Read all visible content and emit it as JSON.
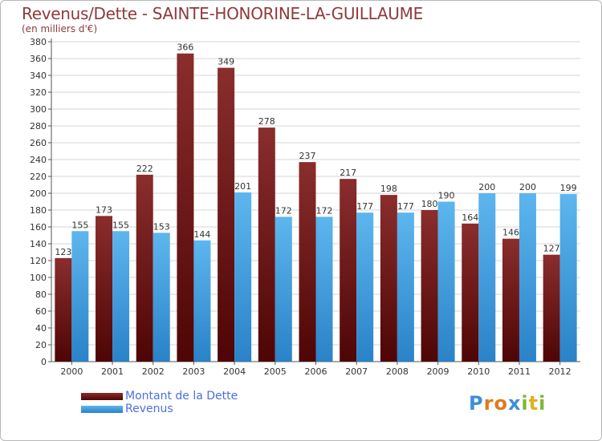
{
  "header": {
    "title": "Revenus/Dette - SAINTE-HONORINE-LA-GUILLAUME",
    "subtitle": "(en milliers d'€)"
  },
  "legend": {
    "items": [
      {
        "label": "Montant de la Dette",
        "color": "#7a1e1e"
      },
      {
        "label": "Revenus",
        "color": "#4aa3e6"
      }
    ]
  },
  "logo": {
    "letters": [
      {
        "ch": "P",
        "color": "#3b8fd9"
      },
      {
        "ch": "r",
        "color": "#e07a1f"
      },
      {
        "ch": "o",
        "color": "#e07a1f"
      },
      {
        "ch": "x",
        "color": "#3b8fd9"
      },
      {
        "ch": "i",
        "color": "#7cb73a"
      },
      {
        "ch": "t",
        "color": "#e0b11f"
      },
      {
        "ch": "i",
        "color": "#7cb73a"
      }
    ]
  },
  "chart_data": {
    "type": "bar",
    "title": "Revenus/Dette - SAINTE-HONORINE-LA-GUILLAUME",
    "subtitle": "(en milliers d'€)",
    "categories": [
      "2000",
      "2001",
      "2002",
      "2003",
      "2004",
      "2005",
      "2006",
      "2007",
      "2008",
      "2009",
      "2010",
      "2011",
      "2012"
    ],
    "series": [
      {
        "name": "Montant de la Dette",
        "color": "#7a1e1e",
        "values": [
          123,
          173,
          222,
          366,
          349,
          278,
          237,
          217,
          198,
          180,
          164,
          146,
          127
        ]
      },
      {
        "name": "Revenus",
        "color": "#4aa3e6",
        "values": [
          155,
          155,
          153,
          144,
          201,
          172,
          172,
          177,
          177,
          190,
          200,
          200,
          199
        ]
      }
    ],
    "ylim": [
      0,
      380
    ],
    "yticks": [
      0,
      20,
      40,
      60,
      80,
      100,
      120,
      140,
      160,
      180,
      200,
      220,
      240,
      260,
      280,
      300,
      320,
      340,
      360,
      380
    ],
    "grid": true,
    "legend_position": "bottom-left"
  }
}
